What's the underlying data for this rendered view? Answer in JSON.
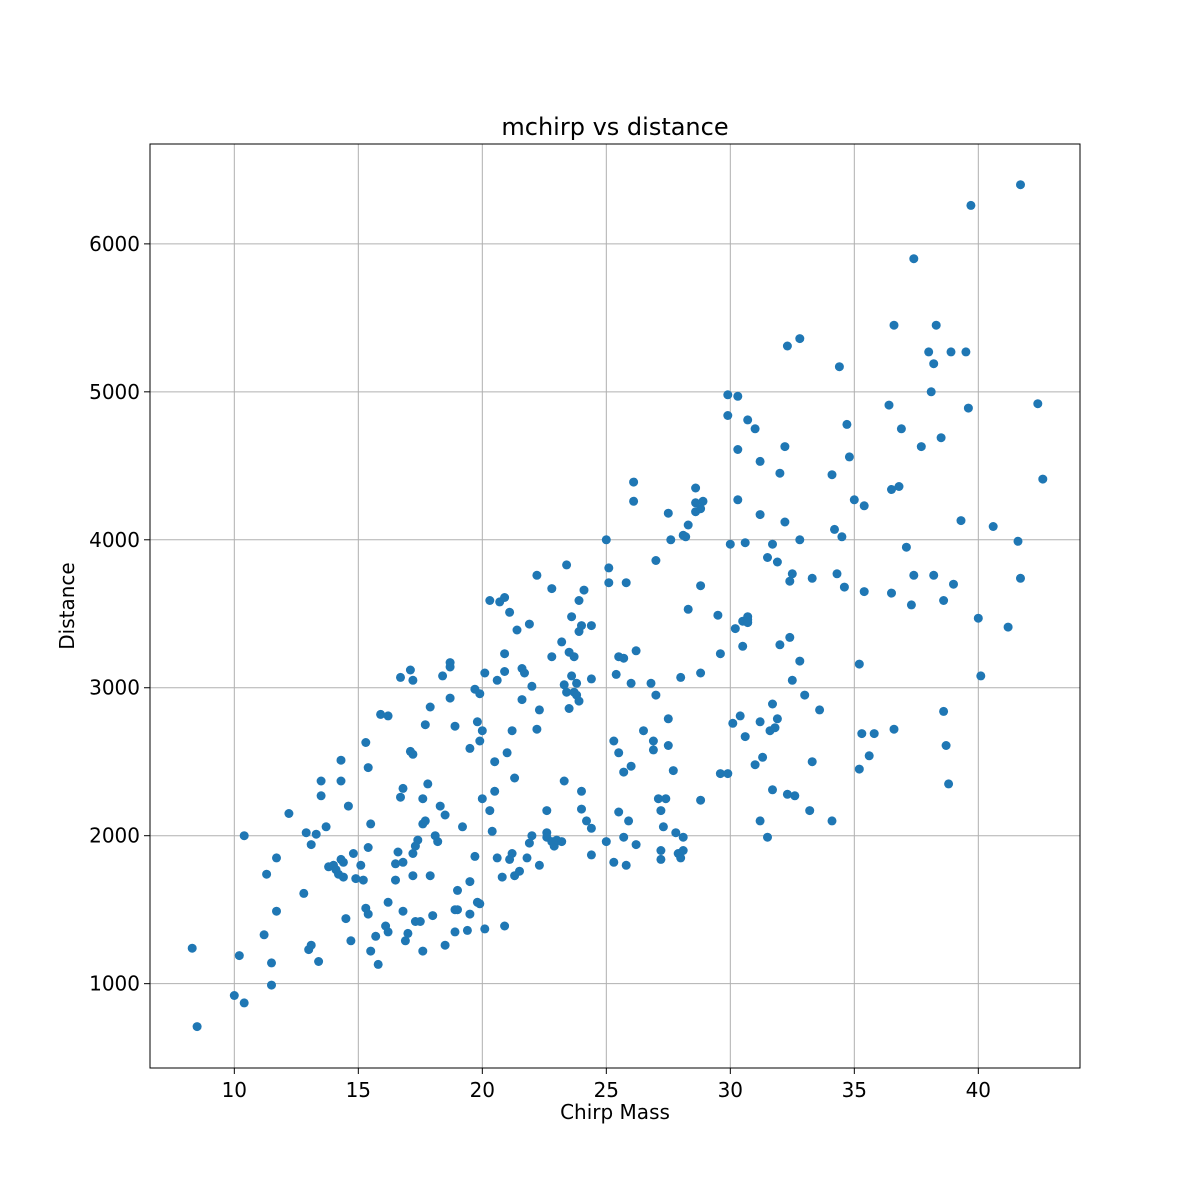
{
  "chart_data": {
    "type": "scatter",
    "title": "mchirp vs distance",
    "xlabel": "Chirp Mass",
    "ylabel": "Distance",
    "xlim": [
      6.6,
      44.1
    ],
    "ylim": [
      430,
      6675
    ],
    "xticks": [
      10,
      15,
      20,
      25,
      30,
      35,
      40
    ],
    "yticks": [
      1000,
      2000,
      3000,
      4000,
      5000,
      6000
    ],
    "grid": true,
    "marker_color": "#1f77b4",
    "points": [
      [
        8.3,
        1240
      ],
      [
        8.5,
        710
      ],
      [
        10.0,
        920
      ],
      [
        10.2,
        1190
      ],
      [
        10.4,
        870
      ],
      [
        10.4,
        2000
      ],
      [
        11.2,
        1330
      ],
      [
        11.3,
        1740
      ],
      [
        11.5,
        1140
      ],
      [
        11.5,
        990
      ],
      [
        11.7,
        1490
      ],
      [
        11.7,
        1850
      ],
      [
        12.2,
        2150
      ],
      [
        12.8,
        1610
      ],
      [
        12.9,
        2020
      ],
      [
        13.0,
        1230
      ],
      [
        13.1,
        1260
      ],
      [
        13.1,
        1940
      ],
      [
        13.3,
        2010
      ],
      [
        13.4,
        1150
      ],
      [
        13.5,
        2370
      ],
      [
        13.5,
        2270
      ],
      [
        13.7,
        2060
      ],
      [
        13.8,
        1790
      ],
      [
        14.0,
        1800
      ],
      [
        14.1,
        1770
      ],
      [
        14.2,
        1740
      ],
      [
        14.3,
        2510
      ],
      [
        14.3,
        1840
      ],
      [
        14.3,
        2370
      ],
      [
        14.4,
        1820
      ],
      [
        14.4,
        1720
      ],
      [
        14.5,
        1440
      ],
      [
        14.6,
        2200
      ],
      [
        14.7,
        1290
      ],
      [
        14.8,
        1880
      ],
      [
        14.9,
        1710
      ],
      [
        15.1,
        1800
      ],
      [
        15.2,
        1700
      ],
      [
        15.3,
        2630
      ],
      [
        15.3,
        1510
      ],
      [
        15.4,
        2460
      ],
      [
        15.4,
        1470
      ],
      [
        15.4,
        1920
      ],
      [
        15.5,
        1220
      ],
      [
        15.5,
        2080
      ],
      [
        15.7,
        1320
      ],
      [
        15.8,
        1130
      ],
      [
        15.9,
        2820
      ],
      [
        16.1,
        1390
      ],
      [
        16.2,
        2810
      ],
      [
        16.2,
        1550
      ],
      [
        16.2,
        1350
      ],
      [
        16.5,
        1700
      ],
      [
        16.5,
        1810
      ],
      [
        16.6,
        1890
      ],
      [
        16.7,
        3070
      ],
      [
        16.7,
        2260
      ],
      [
        16.8,
        2320
      ],
      [
        16.8,
        1490
      ],
      [
        16.8,
        1820
      ],
      [
        16.9,
        1290
      ],
      [
        17.0,
        1340
      ],
      [
        17.1,
        3120
      ],
      [
        17.1,
        2570
      ],
      [
        17.2,
        3050
      ],
      [
        17.2,
        2550
      ],
      [
        17.2,
        1880
      ],
      [
        17.2,
        1730
      ],
      [
        17.3,
        1930
      ],
      [
        17.3,
        1420
      ],
      [
        17.4,
        1970
      ],
      [
        17.5,
        1420
      ],
      [
        17.6,
        1220
      ],
      [
        17.6,
        2250
      ],
      [
        17.6,
        2080
      ],
      [
        17.7,
        2100
      ],
      [
        17.7,
        2750
      ],
      [
        17.8,
        2350
      ],
      [
        17.9,
        2870
      ],
      [
        17.9,
        1730
      ],
      [
        18.0,
        1460
      ],
      [
        18.1,
        2000
      ],
      [
        18.2,
        1960
      ],
      [
        18.3,
        2200
      ],
      [
        18.4,
        3080
      ],
      [
        18.5,
        2140
      ],
      [
        18.5,
        1260
      ],
      [
        18.7,
        2930
      ],
      [
        18.7,
        3140
      ],
      [
        18.7,
        3170
      ],
      [
        18.9,
        2740
      ],
      [
        18.9,
        1350
      ],
      [
        18.9,
        1500
      ],
      [
        19.0,
        1630
      ],
      [
        19.0,
        1500
      ],
      [
        19.2,
        2060
      ],
      [
        19.4,
        1360
      ],
      [
        19.5,
        2590
      ],
      [
        19.5,
        1470
      ],
      [
        19.5,
        1690
      ],
      [
        19.7,
        2990
      ],
      [
        19.7,
        1860
      ],
      [
        19.8,
        1550
      ],
      [
        19.8,
        2770
      ],
      [
        19.9,
        2960
      ],
      [
        19.9,
        1540
      ],
      [
        19.9,
        2640
      ],
      [
        20.0,
        2710
      ],
      [
        20.0,
        2250
      ],
      [
        20.1,
        3100
      ],
      [
        20.1,
        1370
      ],
      [
        20.3,
        3590
      ],
      [
        20.3,
        2170
      ],
      [
        20.4,
        2030
      ],
      [
        20.5,
        2300
      ],
      [
        20.5,
        2500
      ],
      [
        20.6,
        1850
      ],
      [
        20.6,
        3050
      ],
      [
        20.7,
        3580
      ],
      [
        20.8,
        1720
      ],
      [
        20.9,
        3230
      ],
      [
        20.9,
        3610
      ],
      [
        20.9,
        1390
      ],
      [
        20.9,
        3110
      ],
      [
        21.0,
        2560
      ],
      [
        21.1,
        1840
      ],
      [
        21.1,
        3510
      ],
      [
        21.2,
        2710
      ],
      [
        21.2,
        1880
      ],
      [
        21.3,
        2390
      ],
      [
        21.3,
        1730
      ],
      [
        21.4,
        3390
      ],
      [
        21.5,
        1760
      ],
      [
        21.6,
        2920
      ],
      [
        21.6,
        3130
      ],
      [
        21.7,
        3100
      ],
      [
        21.8,
        1850
      ],
      [
        21.9,
        3430
      ],
      [
        21.9,
        1950
      ],
      [
        22.0,
        3010
      ],
      [
        22.0,
        2000
      ],
      [
        22.2,
        2720
      ],
      [
        22.2,
        3760
      ],
      [
        22.3,
        2850
      ],
      [
        22.3,
        1800
      ],
      [
        22.6,
        2020
      ],
      [
        22.6,
        2170
      ],
      [
        22.6,
        1990
      ],
      [
        22.8,
        3210
      ],
      [
        22.8,
        3670
      ],
      [
        22.8,
        1960
      ],
      [
        22.9,
        1930
      ],
      [
        23.0,
        1970
      ],
      [
        23.2,
        1960
      ],
      [
        23.2,
        3310
      ],
      [
        23.3,
        3020
      ],
      [
        23.3,
        2370
      ],
      [
        23.4,
        3830
      ],
      [
        23.4,
        2970
      ],
      [
        23.5,
        2860
      ],
      [
        23.5,
        3240
      ],
      [
        23.6,
        3480
      ],
      [
        23.6,
        3080
      ],
      [
        23.7,
        3210
      ],
      [
        23.7,
        2970
      ],
      [
        23.8,
        2950
      ],
      [
        23.8,
        3030
      ],
      [
        23.9,
        3590
      ],
      [
        23.9,
        3380
      ],
      [
        23.9,
        2910
      ],
      [
        24.0,
        3420
      ],
      [
        24.0,
        2180
      ],
      [
        24.0,
        2300
      ],
      [
        24.1,
        3660
      ],
      [
        24.2,
        2100
      ],
      [
        24.4,
        3060
      ],
      [
        24.4,
        3420
      ],
      [
        24.4,
        1870
      ],
      [
        24.4,
        2050
      ],
      [
        25.0,
        4000
      ],
      [
        25.0,
        1960
      ],
      [
        25.1,
        3810
      ],
      [
        25.1,
        3710
      ],
      [
        25.3,
        1820
      ],
      [
        25.3,
        2640
      ],
      [
        25.4,
        3090
      ],
      [
        25.5,
        2160
      ],
      [
        25.5,
        3210
      ],
      [
        25.5,
        2560
      ],
      [
        25.7,
        3200
      ],
      [
        25.7,
        2430
      ],
      [
        25.7,
        1990
      ],
      [
        25.8,
        3710
      ],
      [
        25.8,
        1800
      ],
      [
        25.9,
        2100
      ],
      [
        26.0,
        3030
      ],
      [
        26.0,
        2470
      ],
      [
        26.1,
        4390
      ],
      [
        26.1,
        4260
      ],
      [
        26.2,
        3250
      ],
      [
        26.2,
        1940
      ],
      [
        26.5,
        2710
      ],
      [
        26.8,
        3030
      ],
      [
        26.9,
        2640
      ],
      [
        26.9,
        2580
      ],
      [
        27.0,
        2950
      ],
      [
        27.0,
        3860
      ],
      [
        27.1,
        2250
      ],
      [
        27.2,
        1900
      ],
      [
        27.2,
        1840
      ],
      [
        27.2,
        2170
      ],
      [
        27.3,
        2060
      ],
      [
        27.4,
        2250
      ],
      [
        27.5,
        2610
      ],
      [
        27.5,
        4180
      ],
      [
        27.5,
        2790
      ],
      [
        27.6,
        4000
      ],
      [
        27.7,
        2440
      ],
      [
        27.8,
        2020
      ],
      [
        27.9,
        1880
      ],
      [
        28.0,
        1850
      ],
      [
        28.0,
        3070
      ],
      [
        28.1,
        4030
      ],
      [
        28.1,
        1990
      ],
      [
        28.1,
        1900
      ],
      [
        28.2,
        4020
      ],
      [
        28.3,
        3530
      ],
      [
        28.3,
        4100
      ],
      [
        28.6,
        4190
      ],
      [
        28.6,
        4350
      ],
      [
        28.6,
        4250
      ],
      [
        28.8,
        3100
      ],
      [
        28.8,
        3690
      ],
      [
        28.8,
        2240
      ],
      [
        28.8,
        4210
      ],
      [
        28.9,
        4260
      ],
      [
        29.5,
        3490
      ],
      [
        29.6,
        2420
      ],
      [
        29.6,
        3230
      ],
      [
        29.9,
        2420
      ],
      [
        29.9,
        4840
      ],
      [
        29.9,
        4980
      ],
      [
        30.0,
        3970
      ],
      [
        30.1,
        2760
      ],
      [
        30.2,
        3400
      ],
      [
        30.3,
        4270
      ],
      [
        30.3,
        4970
      ],
      [
        30.3,
        4610
      ],
      [
        30.4,
        2810
      ],
      [
        30.5,
        3280
      ],
      [
        30.5,
        3450
      ],
      [
        30.6,
        2670
      ],
      [
        30.6,
        3980
      ],
      [
        30.7,
        4810
      ],
      [
        30.7,
        3460
      ],
      [
        30.7,
        3480
      ],
      [
        30.7,
        3440
      ],
      [
        31.0,
        4750
      ],
      [
        31.0,
        2480
      ],
      [
        31.2,
        4530
      ],
      [
        31.2,
        2770
      ],
      [
        31.2,
        4170
      ],
      [
        31.2,
        2100
      ],
      [
        31.3,
        2530
      ],
      [
        31.5,
        3880
      ],
      [
        31.5,
        1990
      ],
      [
        31.6,
        2710
      ],
      [
        31.7,
        2890
      ],
      [
        31.7,
        2310
      ],
      [
        31.7,
        3970
      ],
      [
        31.8,
        2730
      ],
      [
        31.9,
        3850
      ],
      [
        31.9,
        2790
      ],
      [
        32.0,
        3290
      ],
      [
        32.0,
        4450
      ],
      [
        32.2,
        4630
      ],
      [
        32.2,
        4120
      ],
      [
        32.3,
        5310
      ],
      [
        32.3,
        2280
      ],
      [
        32.4,
        3340
      ],
      [
        32.4,
        3720
      ],
      [
        32.5,
        3770
      ],
      [
        32.5,
        3050
      ],
      [
        32.6,
        2270
      ],
      [
        32.8,
        5360
      ],
      [
        32.8,
        4000
      ],
      [
        32.8,
        3180
      ],
      [
        33.0,
        2950
      ],
      [
        33.2,
        2170
      ],
      [
        33.3,
        3740
      ],
      [
        33.3,
        2500
      ],
      [
        33.6,
        2850
      ],
      [
        34.1,
        4440
      ],
      [
        34.1,
        2100
      ],
      [
        34.2,
        4070
      ],
      [
        34.3,
        3770
      ],
      [
        34.4,
        5170
      ],
      [
        34.5,
        4020
      ],
      [
        34.6,
        3680
      ],
      [
        34.7,
        4780
      ],
      [
        34.8,
        4560
      ],
      [
        35.0,
        4270
      ],
      [
        35.2,
        3160
      ],
      [
        35.2,
        2450
      ],
      [
        35.3,
        2690
      ],
      [
        35.4,
        4230
      ],
      [
        35.4,
        3650
      ],
      [
        35.6,
        2540
      ],
      [
        35.8,
        2690
      ],
      [
        36.4,
        4910
      ],
      [
        36.5,
        4340
      ],
      [
        36.5,
        3640
      ],
      [
        36.6,
        2720
      ],
      [
        36.6,
        5450
      ],
      [
        36.8,
        4360
      ],
      [
        36.9,
        4750
      ],
      [
        37.1,
        3950
      ],
      [
        37.3,
        3560
      ],
      [
        37.4,
        5900
      ],
      [
        37.4,
        3760
      ],
      [
        37.7,
        4630
      ],
      [
        38.0,
        5270
      ],
      [
        38.1,
        5000
      ],
      [
        38.2,
        5190
      ],
      [
        38.2,
        3760
      ],
      [
        38.3,
        5450
      ],
      [
        38.5,
        4690
      ],
      [
        38.6,
        2840
      ],
      [
        38.6,
        3590
      ],
      [
        38.7,
        2610
      ],
      [
        38.8,
        2350
      ],
      [
        38.9,
        5270
      ],
      [
        39.0,
        3700
      ],
      [
        39.3,
        4130
      ],
      [
        39.5,
        5270
      ],
      [
        39.6,
        4890
      ],
      [
        39.7,
        6260
      ],
      [
        40.0,
        3470
      ],
      [
        40.1,
        3080
      ],
      [
        40.6,
        4090
      ],
      [
        41.2,
        3410
      ],
      [
        41.6,
        3990
      ],
      [
        41.7,
        6400
      ],
      [
        41.7,
        3740
      ],
      [
        42.4,
        4920
      ],
      [
        42.6,
        4410
      ]
    ]
  }
}
